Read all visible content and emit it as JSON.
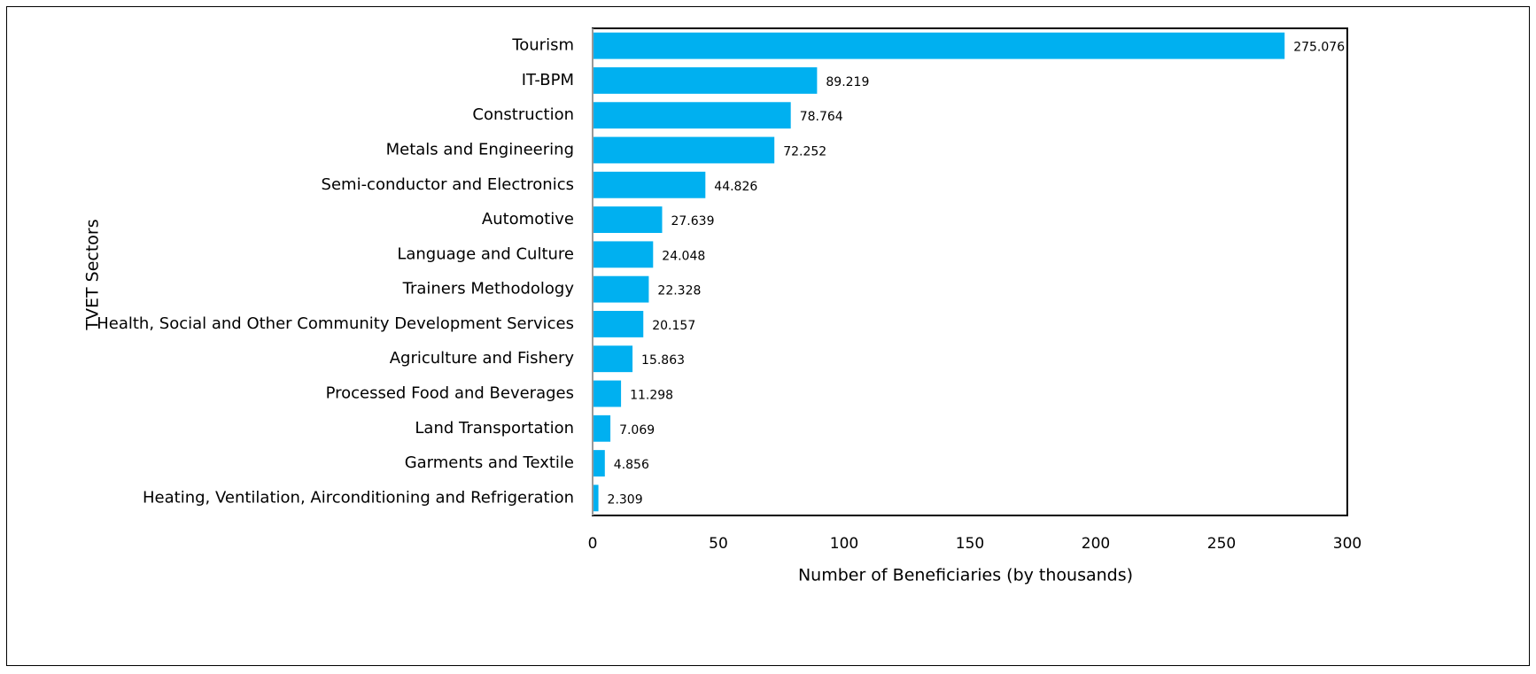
{
  "chart_data": {
    "type": "bar",
    "orientation": "horizontal",
    "categories": [
      "Tourism",
      "IT-BPM",
      "Construction",
      "Metals and Engineering",
      "Semi-conductor and Electronics",
      "Automotive",
      "Language and Culture",
      "Trainers Methodology",
      "Health, Social and Other Community Development Services",
      "Agriculture and Fishery",
      "Processed Food and Beverages",
      "Land Transportation",
      "Garments and Textile",
      "Heating, Ventilation, Airconditioning and Refrigeration"
    ],
    "values": [
      275.076,
      89.219,
      78.764,
      72.252,
      44.826,
      27.639,
      24.048,
      22.328,
      20.157,
      15.863,
      11.298,
      7.069,
      4.856,
      2.309
    ],
    "color": "#00b0f0",
    "xlabel": "Number of Beneficiaries (by thousands)",
    "ylabel": "TVET Sectors",
    "xlim": [
      0,
      300
    ],
    "xticks": [
      0,
      50,
      100,
      150,
      200,
      250,
      300
    ]
  }
}
